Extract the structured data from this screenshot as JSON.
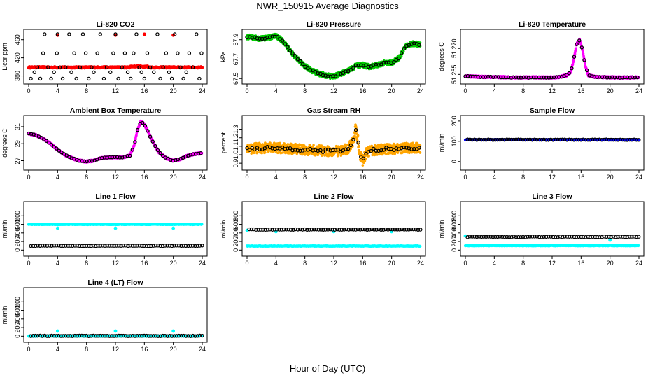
{
  "figure": {
    "title": "NWR_150915  Average Diagnostics",
    "xlabel": "Hour of Day (UTC)"
  },
  "colors": {
    "red": "#ff0000",
    "green": "#00cc00",
    "magenta": "#ff00ff",
    "orange": "#ffa500",
    "blue": "#0000ff",
    "cyan": "#00ffff",
    "avg": "#000000"
  },
  "chart_data": [
    {
      "id": "co2",
      "type": "scatter",
      "title": "Li-820 CO2",
      "ylabel": "Licor ppm",
      "xlim": [
        0,
        24
      ],
      "xticks": [
        0,
        4,
        8,
        12,
        16,
        20,
        24
      ],
      "ylim": [
        370,
        475
      ],
      "yticks": [
        380,
        420,
        460
      ],
      "ytick_labels": [
        "380",
        "420",
        "460"
      ],
      "raw_color": "red",
      "raw_kind": "co2_line",
      "series": [
        {
          "name": "raw",
          "values_desc": "~399 ppm continuous with spikes to ~470 near hours 4, 12, 20"
        }
      ],
      "avg_points": [
        [
          0.3,
          374
        ],
        [
          0.8,
          388
        ],
        [
          1.2,
          399
        ],
        [
          1.6,
          374
        ],
        [
          2.0,
          430
        ],
        [
          2.2,
          472
        ],
        [
          2.7,
          399
        ],
        [
          3.1,
          374
        ],
        [
          3.5,
          388
        ],
        [
          3.9,
          430
        ],
        [
          4.0,
          472
        ],
        [
          4.3,
          399
        ],
        [
          4.7,
          374
        ],
        [
          5.1,
          399
        ],
        [
          5.6,
          472
        ],
        [
          5.9,
          388
        ],
        [
          6.3,
          430
        ],
        [
          6.6,
          374
        ],
        [
          7.1,
          399
        ],
        [
          7.5,
          472
        ],
        [
          7.9,
          430
        ],
        [
          8.3,
          374
        ],
        [
          8.7,
          399
        ],
        [
          9.0,
          388
        ],
        [
          9.5,
          430
        ],
        [
          9.9,
          472
        ],
        [
          10.4,
          374
        ],
        [
          10.8,
          399
        ],
        [
          11.3,
          388
        ],
        [
          11.7,
          430
        ],
        [
          12.0,
          472
        ],
        [
          12.4,
          374
        ],
        [
          12.9,
          399
        ],
        [
          13.3,
          430
        ],
        [
          13.7,
          388
        ],
        [
          14.1,
          374
        ],
        [
          14.5,
          430
        ],
        [
          14.9,
          472
        ],
        [
          15.3,
          399
        ],
        [
          15.6,
          388
        ],
        [
          16.0,
          374
        ],
        [
          16.4,
          430
        ],
        [
          16.8,
          399
        ],
        [
          17.3,
          388
        ],
        [
          17.8,
          472
        ],
        [
          18.2,
          374
        ],
        [
          18.6,
          399
        ],
        [
          19.0,
          430
        ],
        [
          19.4,
          388
        ],
        [
          19.8,
          374
        ],
        [
          20.2,
          472
        ],
        [
          20.6,
          430
        ],
        [
          21.0,
          399
        ],
        [
          21.4,
          374
        ],
        [
          21.8,
          388
        ],
        [
          22.2,
          430
        ],
        [
          22.7,
          399
        ],
        [
          23.2,
          472
        ],
        [
          23.6,
          374
        ],
        [
          23.9,
          430
        ]
      ]
    },
    {
      "id": "pressure",
      "type": "scatter",
      "title": "Li-820 Pressure",
      "ylabel": "kPa",
      "xlim": [
        0,
        24
      ],
      "xticks": [
        0,
        4,
        8,
        12,
        16,
        20,
        24
      ],
      "ylim": [
        67.48,
        67.97
      ],
      "yticks": [
        67.5,
        67.7,
        67.9
      ],
      "ytick_labels": [
        "67.5",
        "67.7",
        "67.9"
      ],
      "raw_color": "green",
      "raw_kind": "band",
      "band": 0.025,
      "curve": [
        [
          0,
          67.93
        ],
        [
          1,
          67.92
        ],
        [
          2,
          67.91
        ],
        [
          3,
          67.92
        ],
        [
          4,
          67.94
        ],
        [
          5,
          67.88
        ],
        [
          6,
          67.78
        ],
        [
          7,
          67.7
        ],
        [
          8,
          67.63
        ],
        [
          9,
          67.58
        ],
        [
          10,
          67.55
        ],
        [
          11,
          67.53
        ],
        [
          12,
          67.52
        ],
        [
          13,
          67.55
        ],
        [
          14,
          67.58
        ],
        [
          15,
          67.63
        ],
        [
          16,
          67.64
        ],
        [
          17,
          67.62
        ],
        [
          18,
          67.64
        ],
        [
          19,
          67.66
        ],
        [
          20,
          67.66
        ],
        [
          21,
          67.71
        ],
        [
          22,
          67.84
        ],
        [
          23,
          67.86
        ],
        [
          24,
          67.85
        ]
      ]
    },
    {
      "id": "licor_temp",
      "type": "scatter",
      "title": "Li-820 Temperature",
      "ylabel": "degrees C",
      "xlim": [
        0,
        24
      ],
      "xticks": [
        0,
        4,
        8,
        12,
        16,
        20,
        24
      ],
      "ylim": [
        51.2515,
        51.279
      ],
      "yticks": [
        51.255,
        51.27
      ],
      "ytick_labels": [
        "51.255",
        "51.270"
      ],
      "raw_color": "magenta",
      "raw_kind": "band",
      "band": 0.0006,
      "curve": [
        [
          0,
          51.254
        ],
        [
          2,
          51.2536
        ],
        [
          4,
          51.2535
        ],
        [
          6,
          51.2533
        ],
        [
          8,
          51.2532
        ],
        [
          10,
          51.2533
        ],
        [
          12,
          51.2532
        ],
        [
          13,
          51.2535
        ],
        [
          14,
          51.2545
        ],
        [
          14.6,
          51.2565
        ],
        [
          15,
          51.264
        ],
        [
          15.4,
          51.2725
        ],
        [
          15.8,
          51.275
        ],
        [
          16.2,
          51.269
        ],
        [
          16.6,
          51.26
        ],
        [
          17.0,
          51.2545
        ],
        [
          18,
          51.2535
        ],
        [
          20,
          51.2533
        ],
        [
          22,
          51.2532
        ],
        [
          24,
          51.2533
        ]
      ]
    },
    {
      "id": "box_temp",
      "type": "scatter",
      "title": "Ambient Box Temperature",
      "ylabel": "degrees C",
      "xlim": [
        0,
        24
      ],
      "xticks": [
        0,
        4,
        8,
        12,
        16,
        20,
        24
      ],
      "ylim": [
        26.3,
        31.9
      ],
      "yticks": [
        27,
        29,
        31
      ],
      "ytick_labels": [
        "27",
        "29",
        "31"
      ],
      "raw_color": "magenta",
      "raw_kind": "band",
      "band": 0.12,
      "curve": [
        [
          0,
          30.2
        ],
        [
          1,
          30.0
        ],
        [
          2,
          29.6
        ],
        [
          3,
          29.0
        ],
        [
          4,
          28.3
        ],
        [
          5,
          27.7
        ],
        [
          6,
          27.3
        ],
        [
          7,
          27.0
        ],
        [
          8,
          26.9
        ],
        [
          9,
          27.0
        ],
        [
          10,
          27.3
        ],
        [
          11,
          27.4
        ],
        [
          12,
          27.4
        ],
        [
          13,
          27.4
        ],
        [
          14,
          27.6
        ],
        [
          14.6,
          28.8
        ],
        [
          15,
          30.5
        ],
        [
          15.5,
          31.6
        ],
        [
          16,
          31.3
        ],
        [
          17,
          29.5
        ],
        [
          18,
          28.0
        ],
        [
          19,
          27.3
        ],
        [
          20,
          27.0
        ],
        [
          21,
          27.2
        ],
        [
          22,
          27.6
        ],
        [
          23,
          27.8
        ],
        [
          24,
          27.9
        ]
      ]
    },
    {
      "id": "gas_rh",
      "type": "scatter",
      "title": "Gas Stream RH",
      "ylabel": "percent",
      "xlim": [
        0,
        24
      ],
      "xticks": [
        0,
        4,
        8,
        12,
        16,
        20,
        24
      ],
      "ylim": [
        0.86,
        1.42
      ],
      "yticks": [
        0.9,
        1.0,
        1.1,
        1.2,
        1.3
      ],
      "ytick_labels": [
        "0.9",
        "1.0",
        "1.1",
        "1.2",
        "1.3"
      ],
      "raw_color": "orange",
      "raw_kind": "band",
      "band": 0.06,
      "curve": [
        [
          0,
          1.07
        ],
        [
          2,
          1.08
        ],
        [
          4,
          1.08
        ],
        [
          6,
          1.07
        ],
        [
          8,
          1.06
        ],
        [
          10,
          1.05
        ],
        [
          12,
          1.04
        ],
        [
          13,
          1.05
        ],
        [
          14,
          1.07
        ],
        [
          14.6,
          1.15
        ],
        [
          15,
          1.3
        ],
        [
          15.3,
          1.2
        ],
        [
          15.6,
          1.0
        ],
        [
          16,
          0.93
        ],
        [
          16.5,
          1.02
        ],
        [
          17,
          1.05
        ],
        [
          18,
          1.06
        ],
        [
          20,
          1.07
        ],
        [
          22,
          1.08
        ],
        [
          24,
          1.08
        ]
      ]
    },
    {
      "id": "sample_flow",
      "type": "scatter",
      "title": "Sample Flow",
      "ylabel": "ml/min",
      "xlim": [
        0,
        24
      ],
      "xticks": [
        0,
        4,
        8,
        12,
        16,
        20,
        24
      ],
      "ylim": [
        -25,
        210
      ],
      "yticks": [
        0,
        100,
        200
      ],
      "ytick_labels": [
        "0",
        "100",
        "200"
      ],
      "raw_color": "blue",
      "raw_kind": "flat",
      "level": 108,
      "avg_level": 108
    },
    {
      "id": "line1",
      "type": "scatter",
      "title": "Line 1 Flow",
      "ylabel": "ml/min",
      "xlim": [
        0,
        24
      ],
      "xticks": [
        0,
        4,
        8,
        12,
        16,
        20,
        24
      ],
      "ylim": [
        -60,
        1050
      ],
      "yticks": [
        0,
        200,
        400,
        600,
        800
      ],
      "ytick_labels": [
        "0",
        "200",
        "400",
        "600",
        "800"
      ],
      "raw_color": "cyan",
      "raw_kind": "flat",
      "level": 600,
      "spikes": [
        [
          4,
          510
        ],
        [
          12,
          510
        ],
        [
          20,
          510
        ]
      ],
      "avg_level": 100
    },
    {
      "id": "line2",
      "type": "scatter",
      "title": "Line 2 Flow",
      "ylabel": "ml/min",
      "xlim": [
        0,
        24
      ],
      "xticks": [
        0,
        4,
        8,
        12,
        16,
        20,
        24
      ],
      "ylim": [
        -60,
        1050
      ],
      "yticks": [
        0,
        200,
        400,
        600,
        800
      ],
      "ytick_labels": [
        "0",
        "200",
        "400",
        "600",
        "800"
      ],
      "raw_color": "cyan",
      "raw_kind": "flat",
      "level": 95,
      "spikes": [
        [
          0,
          460
        ],
        [
          4,
          430
        ],
        [
          12,
          430
        ],
        [
          20,
          430
        ]
      ],
      "avg_level": 480
    },
    {
      "id": "line3",
      "type": "scatter",
      "title": "Line 3 Flow",
      "ylabel": "ml/min",
      "xlim": [
        0,
        24
      ],
      "xticks": [
        0,
        4,
        8,
        12,
        16,
        20,
        24
      ],
      "ylim": [
        -60,
        1050
      ],
      "yticks": [
        0,
        200,
        400,
        600,
        800
      ],
      "ytick_labels": [
        "0",
        "200",
        "400",
        "600",
        "800"
      ],
      "raw_color": "cyan",
      "raw_kind": "flat",
      "level": 105,
      "spikes": [
        [
          0,
          330
        ],
        [
          20,
          230
        ]
      ],
      "avg_level": 310
    },
    {
      "id": "line4",
      "type": "scatter",
      "title": "Line 4 (LT) Flow",
      "ylabel": "ml/min",
      "xlim": [
        0,
        24
      ],
      "xticks": [
        0,
        4,
        8,
        12,
        16,
        20,
        24
      ],
      "ylim": [
        -60,
        1050
      ],
      "yticks": [
        0,
        200,
        400,
        600,
        800
      ],
      "ytick_labels": [
        "0",
        "200",
        "400",
        "600",
        "800"
      ],
      "raw_color": "cyan",
      "raw_kind": "flat",
      "level": 5,
      "spikes": [
        [
          4,
          120
        ],
        [
          12,
          120
        ],
        [
          20,
          120
        ]
      ],
      "avg_level": 8
    }
  ]
}
